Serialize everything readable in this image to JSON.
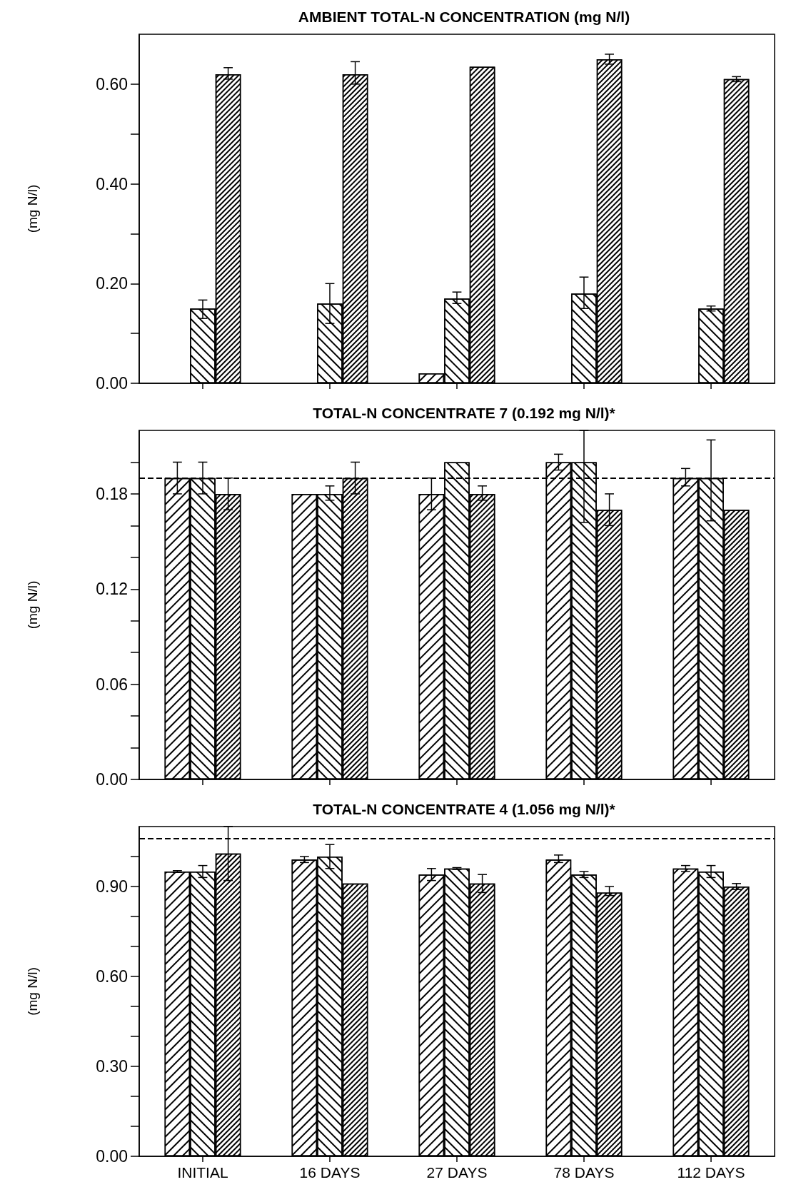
{
  "chart_data": [
    {
      "type": "bar",
      "title": "AMBIENT TOTAL-N CONCENTRATION (mg N/l)",
      "ylabel": "(mg N/l)",
      "categories": [
        null,
        null,
        null,
        null,
        null
      ],
      "series": [
        {
          "color": "#000000",
          "values": [
            null,
            null,
            0.02,
            null,
            null
          ]
        },
        {
          "color": "#000000",
          "values": [
            0.15,
            0.16,
            0.17,
            0.18,
            0.15
          ],
          "errors": [
            [
              0.13,
              0.167
            ],
            [
              0.12,
              0.2
            ],
            [
              0.16,
              0.183
            ],
            [
              0.15,
              0.213
            ],
            [
              0.145,
              0.155
            ]
          ]
        },
        {
          "color": "#000000",
          "values": [
            0.62,
            0.62,
            0.635,
            0.65,
            0.61
          ],
          "errors": [
            [
              0.61,
              0.633
            ],
            [
              0.6,
              0.645
            ],
            null,
            [
              0.64,
              0.66
            ],
            [
              0.605,
              0.615
            ]
          ]
        }
      ],
      "ylim": [
        0,
        0.7
      ],
      "yticks": [
        {
          "value": 0,
          "label": "0.00"
        },
        {
          "value": 0.1,
          "label": null
        },
        {
          "value": 0.2,
          "label": "0.20"
        },
        {
          "value": 0.3,
          "label": null
        },
        {
          "value": 0.4,
          "label": "0.40"
        },
        {
          "value": 0.5,
          "label": null
        },
        {
          "value": 0.6,
          "label": "0.60"
        }
      ],
      "tick_labels": "y",
      "grid": false
    },
    {
      "type": "bar",
      "title": "TOTAL-N CONCENTRATE 7 (0.192 mg N/l)*",
      "ylabel": "(mg N/l)",
      "categories": [
        null,
        null,
        null,
        null,
        null
      ],
      "series": [
        {
          "color": "#000000",
          "values": [
            0.19,
            0.18,
            0.18,
            0.2,
            0.19
          ],
          "errors": [
            [
              0.18,
              0.2
            ],
            null,
            [
              0.17,
              0.19
            ],
            [
              0.195,
              0.205
            ],
            [
              0.185,
              0.196
            ]
          ]
        },
        {
          "color": "#000000",
          "values": [
            0.19,
            0.18,
            0.2,
            0.2,
            0.19
          ],
          "errors": [
            [
              0.18,
              0.2
            ],
            [
              0.176,
              0.185
            ],
            null,
            [
              0.162,
              0.22
            ],
            [
              0.163,
              0.214
            ]
          ]
        },
        {
          "color": "#000000",
          "values": [
            0.18,
            0.19,
            0.18,
            0.17,
            0.17
          ],
          "errors": [
            [
              0.17,
              0.19
            ],
            [
              0.18,
              0.2
            ],
            [
              0.176,
              0.185
            ],
            [
              0.16,
              0.18
            ],
            null
          ]
        }
      ],
      "ylim": [
        0,
        0.22
      ],
      "yticks": [
        {
          "value": 0,
          "label": "0.00"
        },
        {
          "value": 0.02,
          "label": null
        },
        {
          "value": 0.04,
          "label": null
        },
        {
          "value": 0.06,
          "label": "0.06"
        },
        {
          "value": 0.08,
          "label": null
        },
        {
          "value": 0.1,
          "label": null
        },
        {
          "value": 0.12,
          "label": "0.12"
        },
        {
          "value": 0.14,
          "label": null
        },
        {
          "value": 0.16,
          "label": null
        },
        {
          "value": 0.18,
          "label": "0.18"
        },
        {
          "value": 0.2,
          "label": null
        }
      ],
      "ref_lines": [
        {
          "axis": "y",
          "value": 0.19,
          "label": null,
          "color": "#000000",
          "line_style": "dashed"
        }
      ],
      "tick_labels": "y",
      "grid": false
    },
    {
      "type": "bar",
      "title": "TOTAL-N CONCENTRATE 4 (1.056 mg N/l)*",
      "ylabel": "(mg N/l)",
      "categories": [
        "INITIAL",
        "16 DAYS",
        "27 DAYS",
        "78 DAYS",
        "112 DAYS"
      ],
      "series": [
        {
          "color": "#000000",
          "values": [
            0.95,
            0.99,
            0.94,
            0.99,
            0.96
          ],
          "errors": [
            [
              0.947,
              0.953
            ],
            [
              0.98,
              1.0
            ],
            [
              0.92,
              0.96
            ],
            [
              0.98,
              1.005
            ],
            [
              0.95,
              0.97
            ]
          ]
        },
        {
          "color": "#000000",
          "values": [
            0.95,
            1.0,
            0.96,
            0.94,
            0.95
          ],
          "errors": [
            [
              0.93,
              0.97
            ],
            [
              0.96,
              1.04
            ],
            [
              0.957,
              0.963
            ],
            [
              0.93,
              0.95
            ],
            [
              0.93,
              0.97
            ]
          ]
        },
        {
          "color": "#000000",
          "values": [
            1.01,
            0.91,
            0.91,
            0.88,
            0.9
          ],
          "errors": [
            [
              0.92,
              1.1
            ],
            null,
            [
              0.88,
              0.94
            ],
            [
              0.87,
              0.9
            ],
            [
              0.89,
              0.91
            ]
          ]
        }
      ],
      "ylim": [
        0,
        1.1
      ],
      "yticks": [
        {
          "value": 0,
          "label": "0.00"
        },
        {
          "value": 0.1,
          "label": null
        },
        {
          "value": 0.2,
          "label": null
        },
        {
          "value": 0.3,
          "label": "0.30"
        },
        {
          "value": 0.4,
          "label": null
        },
        {
          "value": 0.5,
          "label": null
        },
        {
          "value": 0.6,
          "label": "0.60"
        },
        {
          "value": 0.7,
          "label": null
        },
        {
          "value": 0.8,
          "label": null
        },
        {
          "value": 0.9,
          "label": "0.90"
        },
        {
          "value": 1.0,
          "label": null
        }
      ],
      "ref_lines": [
        {
          "axis": "y",
          "value": 1.056,
          "label": null,
          "color": "#000000",
          "line_style": "dashed"
        }
      ],
      "grid": false
    }
  ]
}
